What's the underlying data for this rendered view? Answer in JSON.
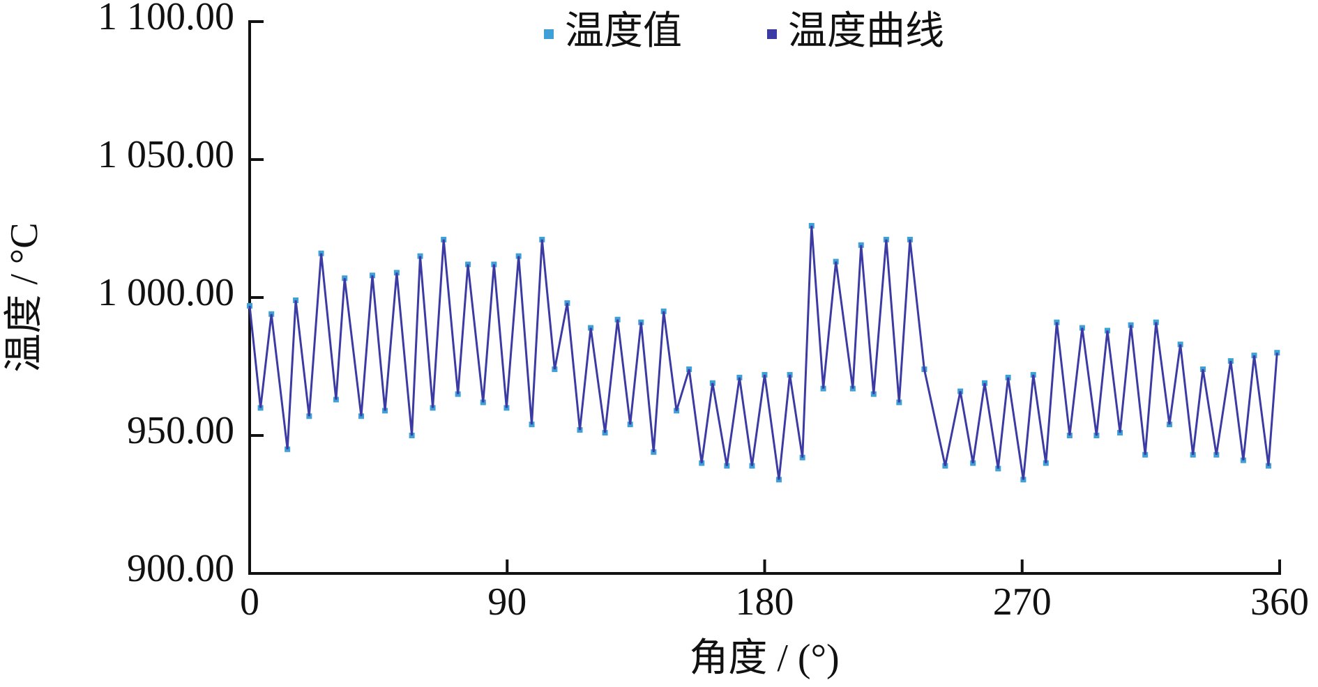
{
  "chart_data": {
    "type": "line",
    "xlabel": "角度 / (°)",
    "ylabel": "温度 / °C",
    "x": [
      0,
      3.8,
      7.6,
      13.2,
      16.1,
      20.8,
      25,
      30.2,
      33.2,
      39,
      42.9,
      47.3,
      51.4,
      56.7,
      59.6,
      64,
      67.8,
      72.8,
      76.3,
      81.6,
      85.4,
      89.8,
      94,
      98.6,
      102.2,
      106.6,
      111,
      115.4,
      119.2,
      124.2,
      128.6,
      133,
      136.8,
      141.2,
      144.7,
      149.2,
      153.6,
      158,
      161.8,
      166.8,
      171.2,
      175.6,
      180,
      185,
      188.8,
      193.2,
      196.4,
      200.5,
      204.9,
      210.8,
      213.7,
      218.1,
      222.5,
      227,
      230.8,
      235.8,
      243.1,
      248.4,
      252.8,
      256.9,
      261.6,
      265.1,
      270.4,
      273.9,
      278.3,
      282.1,
      286.6,
      291,
      296,
      299.8,
      304.2,
      308,
      313,
      316.8,
      321.5,
      325.3,
      329.7,
      333.2,
      337.9,
      342.9,
      347.3,
      351.1,
      356.1,
      359.1
    ],
    "series": [
      {
        "name": "温度值",
        "color": "#3fa0d8",
        "marker": "square",
        "values": [
          997,
          960,
          994,
          945,
          999,
          957,
          1016,
          963,
          1007,
          957,
          1008,
          959,
          1009,
          950,
          1015,
          960,
          1021,
          965,
          1012,
          962,
          1012,
          960,
          1015,
          954,
          1021,
          974,
          998,
          952,
          989,
          951,
          992,
          954,
          991,
          944,
          995,
          959,
          974,
          940,
          969,
          939,
          971,
          939,
          972,
          934,
          972,
          942,
          1026,
          967,
          1013,
          967,
          1019,
          965,
          1021,
          962,
          1021,
          974,
          939,
          966,
          940,
          969,
          938,
          971,
          934,
          972,
          940,
          991,
          950,
          989,
          950,
          988,
          951,
          990,
          943,
          991,
          954,
          983,
          943,
          974,
          943,
          977,
          941,
          979,
          939,
          980
        ]
      },
      {
        "name": "温度曲线",
        "color": "#3b3ba3",
        "marker": "line",
        "values": [
          997,
          960,
          994,
          945,
          999,
          957,
          1016,
          963,
          1007,
          957,
          1008,
          959,
          1009,
          950,
          1015,
          960,
          1021,
          965,
          1012,
          962,
          1012,
          960,
          1015,
          954,
          1021,
          974,
          998,
          952,
          989,
          951,
          992,
          954,
          991,
          944,
          995,
          959,
          974,
          940,
          969,
          939,
          971,
          939,
          972,
          934,
          972,
          942,
          1026,
          967,
          1013,
          967,
          1019,
          965,
          1021,
          962,
          1021,
          974,
          939,
          966,
          940,
          969,
          938,
          971,
          934,
          972,
          940,
          991,
          950,
          989,
          950,
          988,
          951,
          990,
          943,
          991,
          954,
          983,
          943,
          974,
          943,
          977,
          941,
          979,
          939,
          980
        ]
      }
    ],
    "xlim": [
      0,
      360
    ],
    "xticks": [
      0,
      90,
      180,
      270,
      360
    ],
    "ylim": [
      900,
      1100
    ],
    "yticks": [
      {
        "value": 900,
        "label": "900.00"
      },
      {
        "value": 950,
        "label": "950.00"
      },
      {
        "value": 1000,
        "label": "1 000.00"
      },
      {
        "value": 1050,
        "label": "1 050.00"
      },
      {
        "value": 1100,
        "label": "1 100.00"
      }
    ],
    "grid": false,
    "legend": "top"
  }
}
